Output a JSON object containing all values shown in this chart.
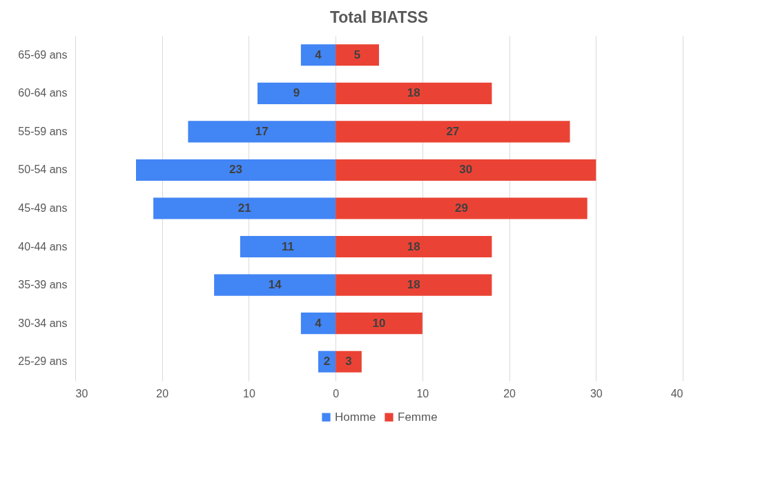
{
  "chart_data": {
    "type": "bar",
    "orientation": "horizontal",
    "title": "Total BIATSS",
    "categories": [
      "65-69 ans",
      "60-64 ans",
      "55-59 ans",
      "50-54 ans",
      "45-49 ans",
      "40-44 ans",
      "35-39 ans",
      "30-34 ans",
      "25-29 ans"
    ],
    "series": [
      {
        "name": "Homme",
        "color": "#4285f4",
        "base": [
          -4,
          -9,
          -17,
          -23,
          -21,
          -11,
          -14,
          -4,
          -2
        ],
        "values": [
          4,
          9,
          17,
          23,
          21,
          11,
          14,
          4,
          2
        ],
        "value_labels": [
          "4",
          "9",
          "17",
          "23",
          "21",
          "11",
          "14",
          "4",
          "2"
        ]
      },
      {
        "name": "Femme",
        "color": "#ea4335",
        "values": [
          5,
          18,
          27,
          30,
          29,
          18,
          18,
          10,
          3
        ],
        "value_labels": [
          "5",
          "18",
          "27",
          "30",
          "29",
          "18",
          "18",
          "10",
          "3"
        ]
      }
    ],
    "xlim": [
      -30,
      40
    ],
    "xticks": [
      {
        "value": -30,
        "label": "30"
      },
      {
        "value": -20,
        "label": "20"
      },
      {
        "value": -10,
        "label": "10"
      },
      0,
      10,
      20,
      30,
      40
    ],
    "grid": "x",
    "legend": "bottom"
  }
}
